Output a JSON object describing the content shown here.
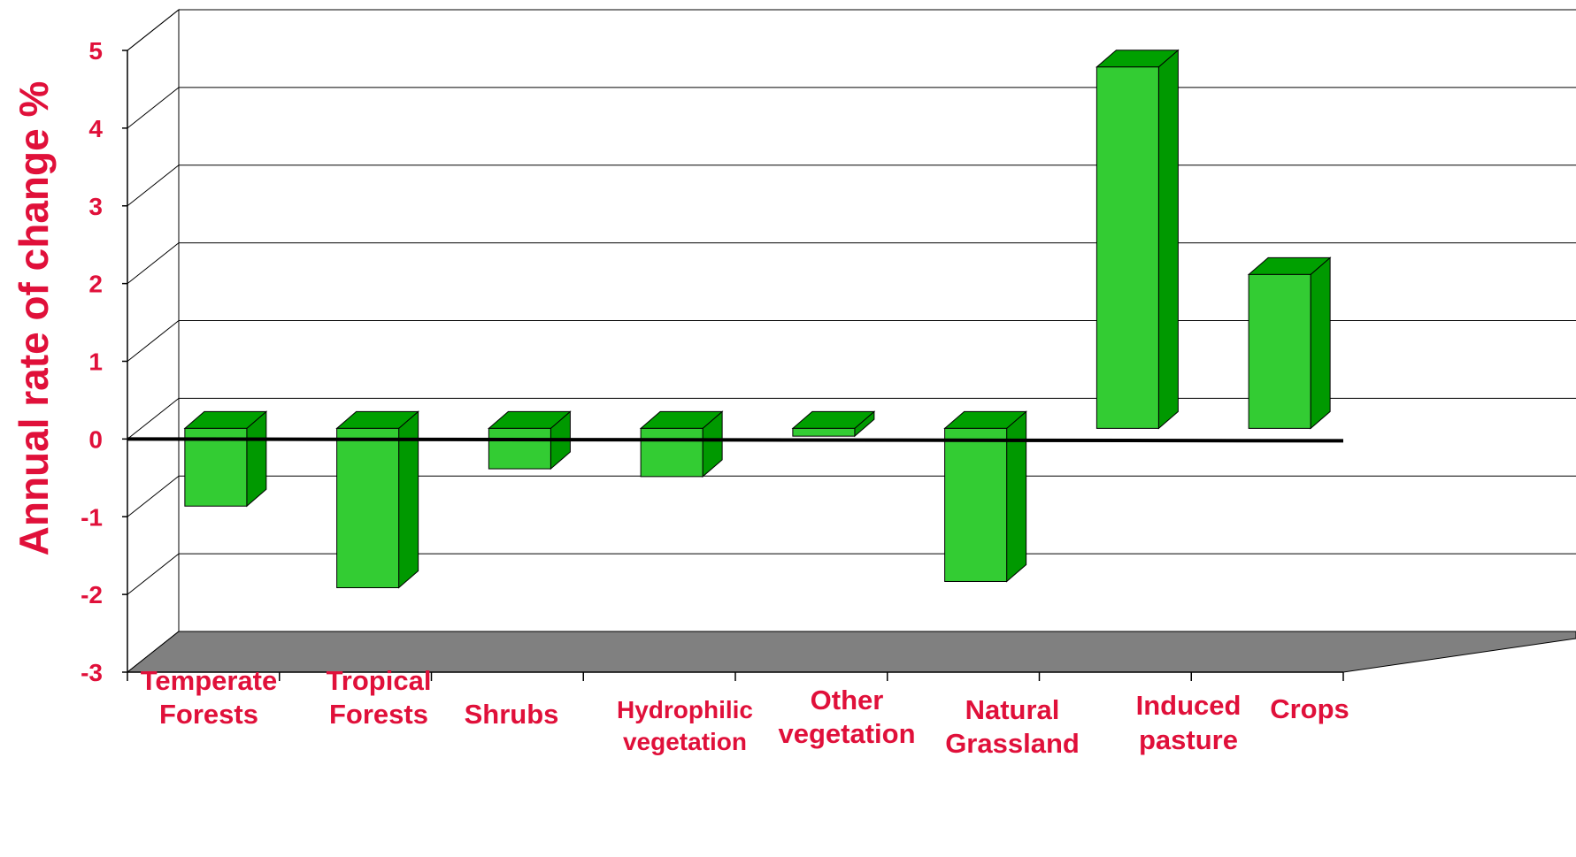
{
  "chart_data": {
    "type": "bar",
    "style": "3d",
    "ylabel": "Annual rate of change %",
    "xlabel": "",
    "title": "",
    "ylim": [
      -3,
      5
    ],
    "yticks": [
      "5",
      "4",
      "3",
      "2",
      "1",
      "0",
      "-1",
      "-2",
      "-3"
    ],
    "grid": true,
    "categories": [
      [
        "Temperate",
        "Forests"
      ],
      [
        "Tropical",
        "Forests"
      ],
      [
        "Shrubs"
      ],
      [
        "Hydrophilic",
        "vegetation"
      ],
      [
        "Other",
        "vegetation"
      ],
      [
        "Natural",
        "Grassland"
      ],
      [
        "Induced",
        "pasture"
      ],
      [
        "Crops"
      ]
    ],
    "values": [
      -1.0,
      -2.05,
      -0.52,
      -0.62,
      -0.1,
      -1.97,
      4.65,
      1.98
    ],
    "colors": {
      "bar_front": "#33cc33",
      "bar_side": "#009900",
      "bar_top": "#00a000",
      "floor": "#808080",
      "label": "#e0103a",
      "grid": "#000000"
    }
  }
}
